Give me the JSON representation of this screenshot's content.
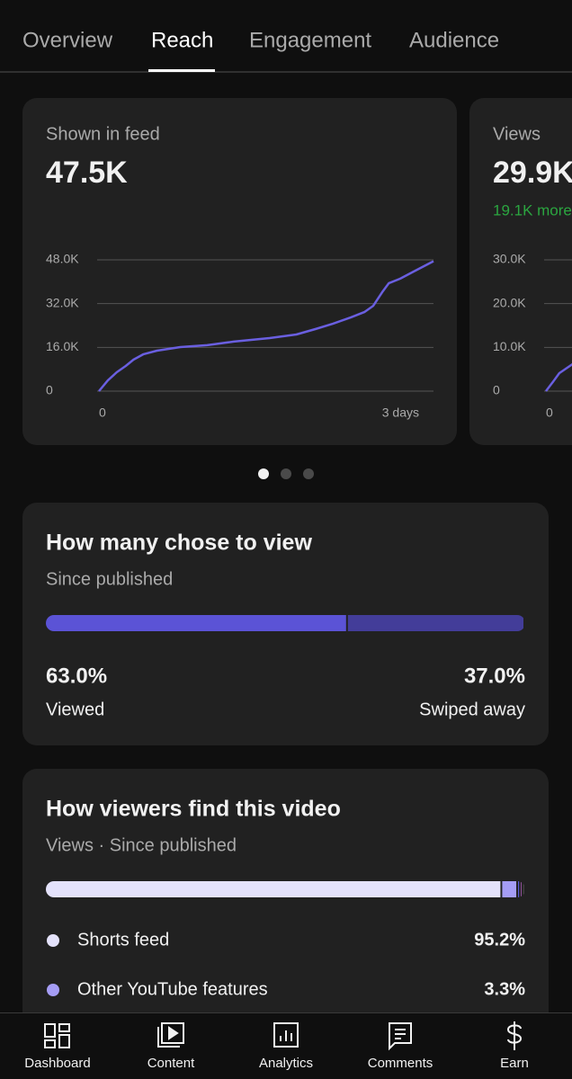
{
  "tabs": [
    "Overview",
    "Reach",
    "Engagement",
    "Audience"
  ],
  "cards": [
    {
      "title": "Shown in feed",
      "value": "47.5K",
      "chart_data": {
        "type": "line",
        "color": "#6a5fe0",
        "x": [
          0,
          0.08,
          0.16,
          0.24,
          0.31,
          0.4,
          0.52,
          0.73,
          0.97,
          1.21,
          1.53,
          1.77,
          1.94,
          2.1,
          2.26,
          2.38,
          2.46,
          2.54,
          2.6,
          2.7,
          2.82,
          3
        ],
        "values": [
          0,
          3900,
          6900,
          9200,
          11500,
          13500,
          14800,
          16100,
          16800,
          18100,
          19400,
          20700,
          22700,
          24700,
          27000,
          28900,
          31200,
          36200,
          39500,
          41100,
          43700,
          47500
        ],
        "xlim": [
          0,
          3
        ],
        "xticks": [
          0,
          {
            "value": 3,
            "label": "3 days"
          }
        ],
        "ylim": [
          0,
          48000
        ],
        "yticks": [
          0,
          {
            "value": 16000,
            "label": "16.0K"
          },
          {
            "value": 32000,
            "label": "32.0K"
          },
          {
            "value": 48000,
            "label": "48.0K"
          }
        ],
        "grid": true
      }
    },
    {
      "title": "Views",
      "value": "29.9K",
      "note": "19.1K more",
      "chart_data": {
        "type": "line",
        "color": "#6a5fe0",
        "x": [
          0,
          0.06,
          0.12,
          0.24
        ],
        "values": [
          0,
          2000,
          4100,
          6200
        ],
        "xlim": [
          0,
          3
        ],
        "xticks": [
          0
        ],
        "ylim": [
          0,
          30000
        ],
        "yticks": [
          0,
          {
            "value": 10000,
            "label": "10.0K"
          },
          {
            "value": 20000,
            "label": "20.0K"
          },
          {
            "value": 30000,
            "label": "30.0K"
          }
        ],
        "grid": true
      }
    },
    {
      "title": "How many chose to view",
      "subtitle": "Since published",
      "chart_data": {
        "type": "bar",
        "categories": [
          "Viewed",
          "Swiped away"
        ],
        "values": [
          63.0,
          37.0
        ],
        "value_labels": [
          "63.0%",
          "37.0%"
        ],
        "colors": [
          "#5b53d6",
          "#433d99"
        ]
      }
    },
    {
      "title": "How viewers find this video",
      "subtitle": "Views · Since published",
      "chart_data": {
        "type": "bar",
        "categories": [
          "Shorts feed",
          "Other YouTube features",
          null,
          null,
          null
        ],
        "values": [
          95.2,
          3.3,
          0.6,
          0.5,
          0.4
        ],
        "value_labels": [
          "95.2%",
          "3.3%",
          null,
          null,
          null
        ],
        "colors": [
          "#e4e2fb",
          "#a59df5",
          "#5b5bd6",
          "#c86ad8",
          "#777777"
        ]
      }
    }
  ],
  "nav": [
    "Dashboard",
    "Content",
    "Analytics",
    "Comments",
    "Earn"
  ]
}
